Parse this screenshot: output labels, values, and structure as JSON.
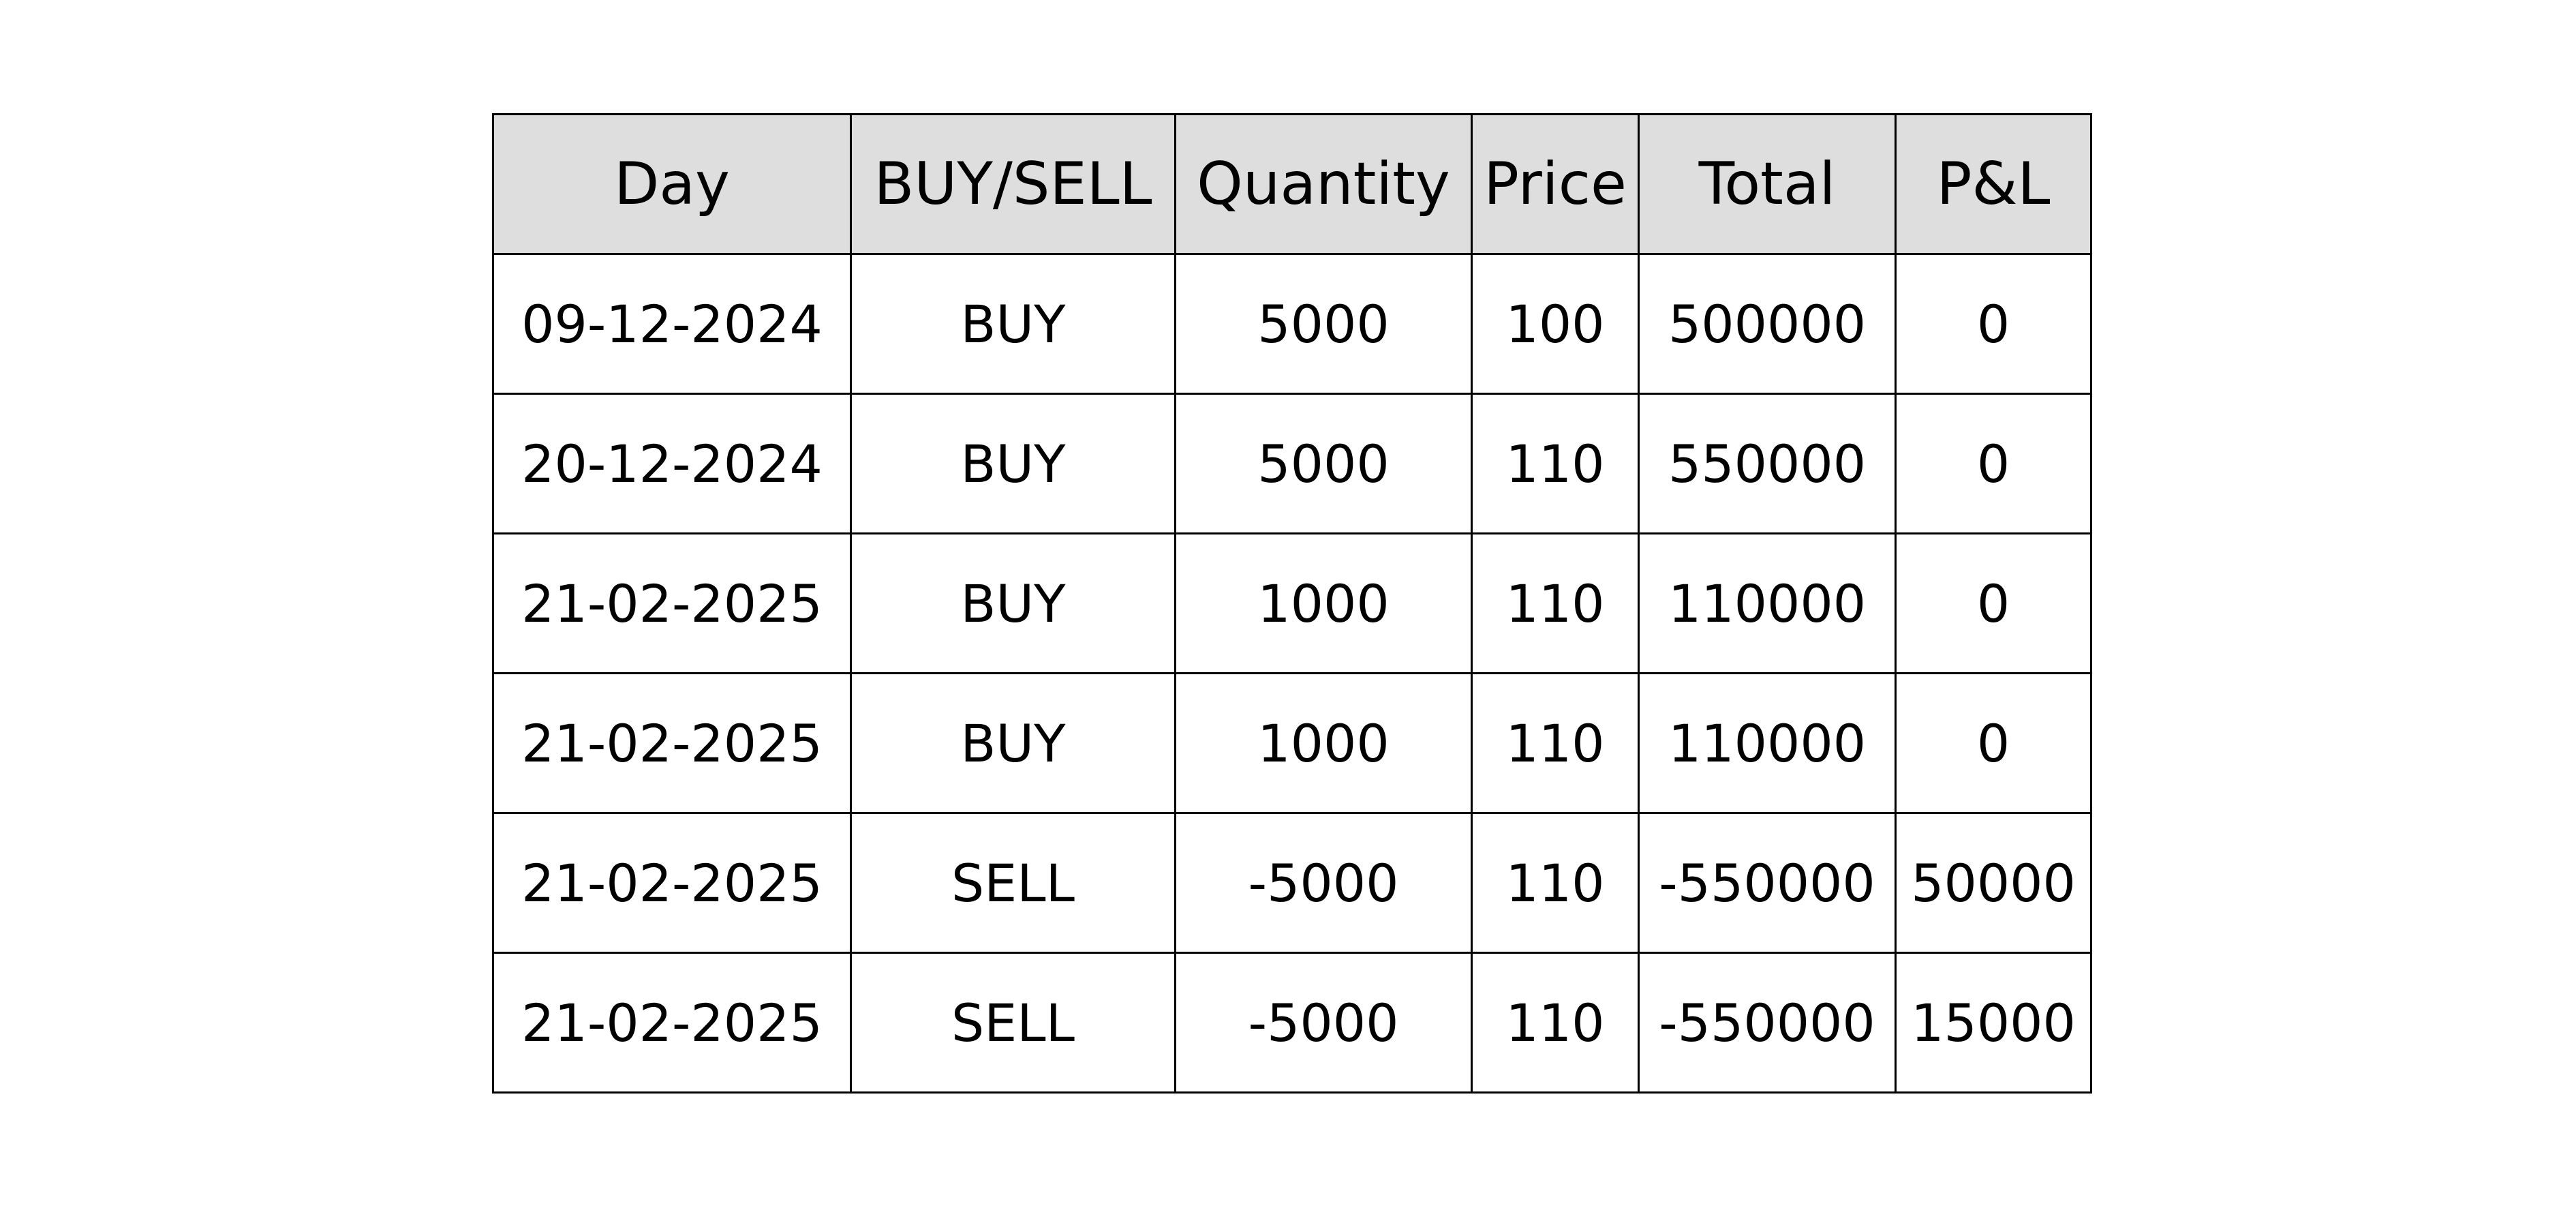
{
  "chart_data": {
    "type": "table",
    "columns": [
      "Day",
      "BUY/SELL",
      "Quantity",
      "Price",
      "Total",
      "P&L"
    ],
    "rows": [
      [
        "09-12-2024",
        "BUY",
        "5000",
        "100",
        "500000",
        "0"
      ],
      [
        "20-12-2024",
        "BUY",
        "5000",
        "110",
        "550000",
        "0"
      ],
      [
        "21-02-2025",
        "BUY",
        "1000",
        "110",
        "110000",
        "0"
      ],
      [
        "21-02-2025",
        "BUY",
        "1000",
        "110",
        "110000",
        "0"
      ],
      [
        "21-02-2025",
        "SELL",
        "-5000",
        "110",
        "-550000",
        "50000"
      ],
      [
        "21-02-2025",
        "SELL",
        "-5000",
        "110",
        "-550000",
        "15000"
      ]
    ],
    "header_background": "#dedede",
    "grid": true
  }
}
